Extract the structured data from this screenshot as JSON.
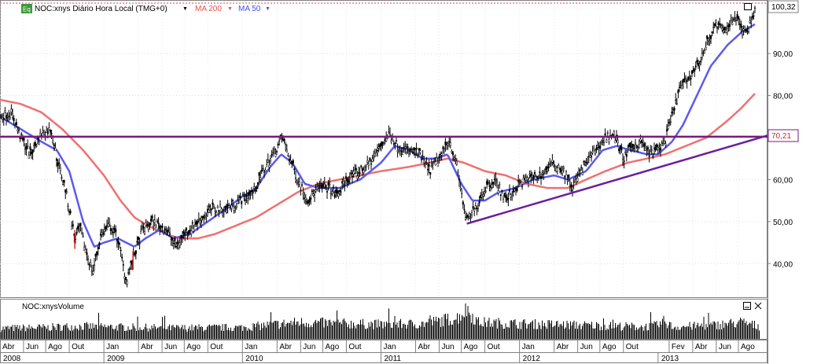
{
  "chart_data": {
    "type": "candlestick",
    "legend": {
      "badge": "Eq",
      "instrument": "NOC:xnys Diário Hora Local (TMG+0)",
      "ma200_label": "MA 200",
      "ma50_label": "MA 50"
    },
    "volume_label": "NOC:xnysVolume",
    "price_axis": {
      "ylim": [
        32,
        102
      ],
      "ticks": [
        "40,00",
        "50,00",
        "60,00",
        "70,00",
        "80,00",
        "90,00"
      ],
      "tick_values": [
        40,
        50,
        60,
        70,
        80,
        90
      ]
    },
    "last_price_label": "100,32",
    "resistance_label": "70,21",
    "resistance_level": 70.21,
    "x_axis": {
      "start": 2008.25,
      "end": 2013.79,
      "months": [
        {
          "label": "Abr",
          "t": 2008.25
        },
        {
          "label": "Jun",
          "t": 2008.42
        },
        {
          "label": "Ago",
          "t": 2008.58
        },
        {
          "label": "Out",
          "t": 2008.75
        },
        {
          "label": "Jan",
          "t": 2009.0
        },
        {
          "label": "Abr",
          "t": 2009.25
        },
        {
          "label": "Jun",
          "t": 2009.42
        },
        {
          "label": "Ago",
          "t": 2009.58
        },
        {
          "label": "Out",
          "t": 2009.75
        },
        {
          "label": "Jan",
          "t": 2010.0
        },
        {
          "label": "Abr",
          "t": 2010.25
        },
        {
          "label": "Jun",
          "t": 2010.42
        },
        {
          "label": "Ago",
          "t": 2010.58
        },
        {
          "label": "Out",
          "t": 2010.75
        },
        {
          "label": "Jan",
          "t": 2011.0
        },
        {
          "label": "Abr",
          "t": 2011.25
        },
        {
          "label": "Jun",
          "t": 2011.42
        },
        {
          "label": "Ago",
          "t": 2011.58
        },
        {
          "label": "Out",
          "t": 2011.75
        },
        {
          "label": "Jan",
          "t": 2012.0
        },
        {
          "label": "Abr",
          "t": 2012.25
        },
        {
          "label": "Jun",
          "t": 2012.42
        },
        {
          "label": "Ago",
          "t": 2012.58
        },
        {
          "label": "Out",
          "t": 2012.75
        },
        {
          "label": "Fev",
          "t": 2013.08
        },
        {
          "label": "Abr",
          "t": 2013.25
        },
        {
          "label": "Jun",
          "t": 2013.42
        },
        {
          "label": "Ago",
          "t": 2013.58
        }
      ],
      "years": [
        {
          "label": "2008",
          "t": 2008.0
        },
        {
          "label": "2009",
          "t": 2009.0
        },
        {
          "label": "2010",
          "t": 2010.0
        },
        {
          "label": "2011",
          "t": 2011.0
        },
        {
          "label": "2012",
          "t": 2012.0
        },
        {
          "label": "2013",
          "t": 2013.0
        }
      ]
    },
    "price_series": [
      [
        2008.25,
        75
      ],
      [
        2008.33,
        76
      ],
      [
        2008.4,
        70
      ],
      [
        2008.47,
        66
      ],
      [
        2008.55,
        71
      ],
      [
        2008.62,
        72
      ],
      [
        2008.66,
        65
      ],
      [
        2008.72,
        58
      ],
      [
        2008.79,
        46
      ],
      [
        2008.83,
        48
      ],
      [
        2008.87,
        43
      ],
      [
        2008.92,
        38
      ],
      [
        2008.98,
        47
      ],
      [
        2009.04,
        49
      ],
      [
        2009.1,
        46
      ],
      [
        2009.16,
        36
      ],
      [
        2009.22,
        42
      ],
      [
        2009.28,
        48
      ],
      [
        2009.35,
        50
      ],
      [
        2009.45,
        48
      ],
      [
        2009.52,
        44
      ],
      [
        2009.58,
        47
      ],
      [
        2009.68,
        50
      ],
      [
        2009.78,
        53
      ],
      [
        2009.88,
        53
      ],
      [
        2009.98,
        55
      ],
      [
        2010.08,
        57
      ],
      [
        2010.15,
        62
      ],
      [
        2010.22,
        66
      ],
      [
        2010.29,
        70
      ],
      [
        2010.33,
        66
      ],
      [
        2010.4,
        60
      ],
      [
        2010.47,
        55
      ],
      [
        2010.55,
        58
      ],
      [
        2010.63,
        58
      ],
      [
        2010.68,
        56
      ],
      [
        2010.75,
        60
      ],
      [
        2010.85,
        62
      ],
      [
        2010.92,
        64
      ],
      [
        2011.0,
        68
      ],
      [
        2011.06,
        71
      ],
      [
        2011.12,
        68
      ],
      [
        2011.18,
        67
      ],
      [
        2011.28,
        66
      ],
      [
        2011.35,
        62
      ],
      [
        2011.44,
        66
      ],
      [
        2011.49,
        70
      ],
      [
        2011.55,
        63
      ],
      [
        2011.6,
        53
      ],
      [
        2011.62,
        50
      ],
      [
        2011.68,
        53
      ],
      [
        2011.75,
        58
      ],
      [
        2011.82,
        60
      ],
      [
        2011.9,
        55
      ],
      [
        2011.97,
        58
      ],
      [
        2012.05,
        60
      ],
      [
        2012.15,
        61
      ],
      [
        2012.25,
        64
      ],
      [
        2012.32,
        62
      ],
      [
        2012.38,
        58
      ],
      [
        2012.46,
        63
      ],
      [
        2012.55,
        67
      ],
      [
        2012.62,
        70
      ],
      [
        2012.68,
        71
      ],
      [
        2012.75,
        65
      ],
      [
        2012.82,
        68
      ],
      [
        2012.88,
        69
      ],
      [
        2012.94,
        66
      ],
      [
        2012.99,
        67
      ],
      [
        2013.05,
        69
      ],
      [
        2013.1,
        75
      ],
      [
        2013.16,
        82
      ],
      [
        2013.22,
        84
      ],
      [
        2013.3,
        88
      ],
      [
        2013.36,
        93
      ],
      [
        2013.42,
        97
      ],
      [
        2013.48,
        95
      ],
      [
        2013.55,
        99
      ],
      [
        2013.63,
        95
      ],
      [
        2013.7,
        100.3
      ]
    ],
    "ma50_series": [
      [
        2008.25,
        75
      ],
      [
        2008.4,
        72
      ],
      [
        2008.55,
        69
      ],
      [
        2008.66,
        67
      ],
      [
        2008.75,
        62
      ],
      [
        2008.85,
        50
      ],
      [
        2008.93,
        44
      ],
      [
        2009.0,
        45
      ],
      [
        2009.1,
        46
      ],
      [
        2009.22,
        44
      ],
      [
        2009.3,
        46
      ],
      [
        2009.4,
        48
      ],
      [
        2009.5,
        46
      ],
      [
        2009.62,
        47
      ],
      [
        2009.75,
        50
      ],
      [
        2009.88,
        53
      ],
      [
        2010.0,
        56
      ],
      [
        2010.1,
        58
      ],
      [
        2010.2,
        63
      ],
      [
        2010.28,
        66
      ],
      [
        2010.36,
        64
      ],
      [
        2010.45,
        59
      ],
      [
        2010.55,
        58
      ],
      [
        2010.7,
        58
      ],
      [
        2010.85,
        60
      ],
      [
        2011.0,
        64
      ],
      [
        2011.1,
        68
      ],
      [
        2011.2,
        67
      ],
      [
        2011.3,
        65
      ],
      [
        2011.4,
        65
      ],
      [
        2011.48,
        66
      ],
      [
        2011.58,
        59
      ],
      [
        2011.66,
        55
      ],
      [
        2011.75,
        55
      ],
      [
        2011.85,
        57
      ],
      [
        2011.97,
        58
      ],
      [
        2012.1,
        60
      ],
      [
        2012.25,
        61
      ],
      [
        2012.35,
        60
      ],
      [
        2012.48,
        62
      ],
      [
        2012.6,
        67
      ],
      [
        2012.7,
        68
      ],
      [
        2012.8,
        67
      ],
      [
        2012.92,
        66
      ],
      [
        2013.0,
        66
      ],
      [
        2013.1,
        69
      ],
      [
        2013.18,
        73
      ],
      [
        2013.28,
        80
      ],
      [
        2013.38,
        87
      ],
      [
        2013.5,
        92
      ],
      [
        2013.6,
        95
      ],
      [
        2013.7,
        97
      ]
    ],
    "ma200_series": [
      [
        2008.25,
        79
      ],
      [
        2008.4,
        78
      ],
      [
        2008.55,
        76
      ],
      [
        2008.7,
        72
      ],
      [
        2008.85,
        67
      ],
      [
        2009.0,
        61
      ],
      [
        2009.12,
        55
      ],
      [
        2009.22,
        51
      ],
      [
        2009.32,
        49
      ],
      [
        2009.45,
        47
      ],
      [
        2009.55,
        46
      ],
      [
        2009.68,
        46
      ],
      [
        2009.8,
        47
      ],
      [
        2009.95,
        49
      ],
      [
        2010.1,
        51
      ],
      [
        2010.25,
        54
      ],
      [
        2010.4,
        57
      ],
      [
        2010.55,
        59
      ],
      [
        2010.7,
        60
      ],
      [
        2010.85,
        61
      ],
      [
        2011.0,
        62
      ],
      [
        2011.2,
        63
      ],
      [
        2011.35,
        64
      ],
      [
        2011.48,
        65
      ],
      [
        2011.6,
        64
      ],
      [
        2011.75,
        62
      ],
      [
        2011.9,
        61
      ],
      [
        2012.05,
        59
      ],
      [
        2012.2,
        58
      ],
      [
        2012.35,
        58
      ],
      [
        2012.48,
        60
      ],
      [
        2012.62,
        62
      ],
      [
        2012.78,
        64
      ],
      [
        2012.92,
        65
      ],
      [
        2013.05,
        66
      ],
      [
        2013.2,
        68
      ],
      [
        2013.35,
        70
      ],
      [
        2013.5,
        74
      ],
      [
        2013.6,
        77
      ],
      [
        2013.7,
        80.5
      ]
    ],
    "support_line": [
      [
        2011.62,
        49.5
      ],
      [
        2013.79,
        70.5
      ]
    ],
    "volume_series": [
      [
        2008.25,
        0.35
      ],
      [
        2008.6,
        0.38
      ],
      [
        2008.8,
        0.42
      ],
      [
        2009.0,
        0.4
      ],
      [
        2009.5,
        0.36
      ],
      [
        2010.0,
        0.38
      ],
      [
        2010.4,
        0.55
      ],
      [
        2010.8,
        0.5
      ],
      [
        2011.0,
        0.48
      ],
      [
        2011.3,
        0.5
      ],
      [
        2011.55,
        0.7
      ],
      [
        2011.62,
        1.0
      ],
      [
        2011.7,
        0.55
      ],
      [
        2012.0,
        0.5
      ],
      [
        2012.5,
        0.45
      ],
      [
        2012.9,
        0.4
      ],
      [
        2013.0,
        0.45
      ],
      [
        2013.05,
        0.6
      ],
      [
        2013.1,
        0.4
      ],
      [
        2013.4,
        0.45
      ],
      [
        2013.6,
        0.55
      ],
      [
        2013.75,
        0.4
      ]
    ]
  }
}
